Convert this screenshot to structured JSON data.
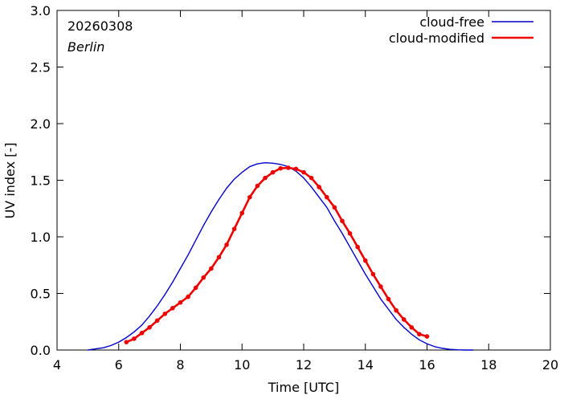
{
  "chart_data": {
    "type": "line",
    "xlabel": "Time  [UTC]",
    "ylabel": "UV index  [-]",
    "xlim": [
      4,
      20
    ],
    "ylim": [
      0.0,
      3.0
    ],
    "xticks": [
      4,
      6,
      8,
      10,
      12,
      14,
      16,
      18,
      20
    ],
    "yticks": [
      0.0,
      0.5,
      1.0,
      1.5,
      2.0,
      2.5,
      3.0
    ],
    "xtick_labels": [
      "4",
      "6",
      "8",
      "10",
      "12",
      "14",
      "16",
      "18",
      "20"
    ],
    "ytick_labels": [
      "0.0",
      "0.5",
      "1.0",
      "1.5",
      "2.0",
      "2.5",
      "3.0"
    ],
    "grid": false,
    "legend_position": "top-right",
    "annotations": {
      "date": "20260308",
      "location": "Berlin"
    },
    "series": [
      {
        "name": "cloud-free",
        "color": "#0000cc",
        "markers": false,
        "x": [
          5.0,
          5.25,
          5.5,
          5.75,
          6.0,
          6.25,
          6.5,
          6.75,
          7.0,
          7.25,
          7.5,
          7.75,
          8.0,
          8.25,
          8.5,
          8.75,
          9.0,
          9.25,
          9.5,
          9.75,
          10.0,
          10.25,
          10.5,
          10.75,
          11.0,
          11.25,
          11.5,
          11.75,
          12.0,
          12.25,
          12.5,
          12.75,
          13.0,
          13.25,
          13.5,
          13.75,
          14.0,
          14.25,
          14.5,
          14.75,
          15.0,
          15.25,
          15.5,
          15.75,
          16.0,
          16.25,
          16.5,
          16.75,
          17.0,
          17.25,
          17.5
        ],
        "y": [
          0.0,
          0.01,
          0.02,
          0.04,
          0.07,
          0.11,
          0.16,
          0.22,
          0.3,
          0.39,
          0.49,
          0.6,
          0.72,
          0.84,
          0.97,
          1.1,
          1.22,
          1.33,
          1.43,
          1.51,
          1.57,
          1.62,
          1.645,
          1.655,
          1.65,
          1.64,
          1.62,
          1.58,
          1.52,
          1.44,
          1.35,
          1.26,
          1.14,
          1.03,
          0.91,
          0.79,
          0.67,
          0.56,
          0.45,
          0.36,
          0.27,
          0.2,
          0.14,
          0.09,
          0.055,
          0.03,
          0.015,
          0.006,
          0.002,
          0.0,
          0.0
        ]
      },
      {
        "name": "cloud-modified",
        "color": "#ee0000",
        "markers": true,
        "x": [
          6.25,
          6.5,
          6.75,
          7.0,
          7.25,
          7.5,
          7.75,
          8.0,
          8.25,
          8.5,
          8.75,
          9.0,
          9.25,
          9.5,
          9.75,
          10.0,
          10.25,
          10.5,
          10.75,
          11.0,
          11.25,
          11.5,
          11.75,
          12.0,
          12.25,
          12.5,
          12.75,
          13.0,
          13.25,
          13.5,
          13.75,
          14.0,
          14.25,
          14.5,
          14.75,
          15.0,
          15.25,
          15.5,
          15.75,
          16.0
        ],
        "y": [
          0.07,
          0.1,
          0.15,
          0.2,
          0.26,
          0.32,
          0.37,
          0.42,
          0.47,
          0.55,
          0.64,
          0.72,
          0.82,
          0.93,
          1.07,
          1.21,
          1.35,
          1.45,
          1.52,
          1.57,
          1.605,
          1.61,
          1.6,
          1.57,
          1.52,
          1.44,
          1.35,
          1.26,
          1.14,
          1.03,
          0.91,
          0.79,
          0.67,
          0.56,
          0.45,
          0.35,
          0.27,
          0.2,
          0.14,
          0.12
        ]
      }
    ]
  }
}
